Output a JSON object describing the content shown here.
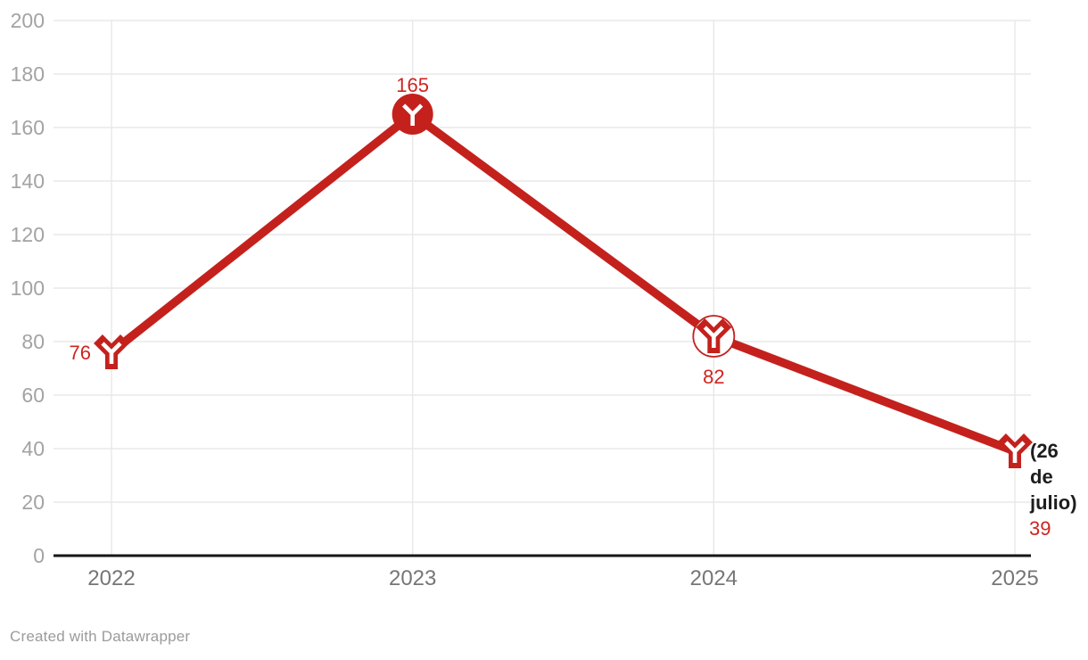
{
  "chart_data": {
    "type": "line",
    "title": "",
    "xlabel": "",
    "ylabel": "",
    "categories": [
      "2022",
      "2023",
      "2024",
      "2025"
    ],
    "values": [
      76,
      165,
      82,
      39
    ],
    "value_labels": [
      "76",
      "165",
      "82",
      "39"
    ],
    "label_positions": [
      "left",
      "above",
      "below",
      "right"
    ],
    "marker_styles": [
      "y",
      "circle-y",
      "ring-y",
      "y"
    ],
    "annotation": {
      "text": "(26 de julio)",
      "lines": [
        "(26",
        "de",
        "julio)"
      ],
      "applies_to": "2025"
    },
    "ylim": [
      0,
      200
    ],
    "ytick_step": 20,
    "grid": "on",
    "legend": "none",
    "colors": {
      "line": "#c4211d",
      "marker_inner": "#ffffff",
      "value_label": "#cf2420",
      "annotation_text": "#1d1d1d",
      "grid": "#e8e8e8",
      "baseline": "#161616",
      "y_tick_text": "#a3a3a3",
      "x_tick_text": "#767676"
    }
  },
  "footer": {
    "credit": "Created with Datawrapper"
  }
}
